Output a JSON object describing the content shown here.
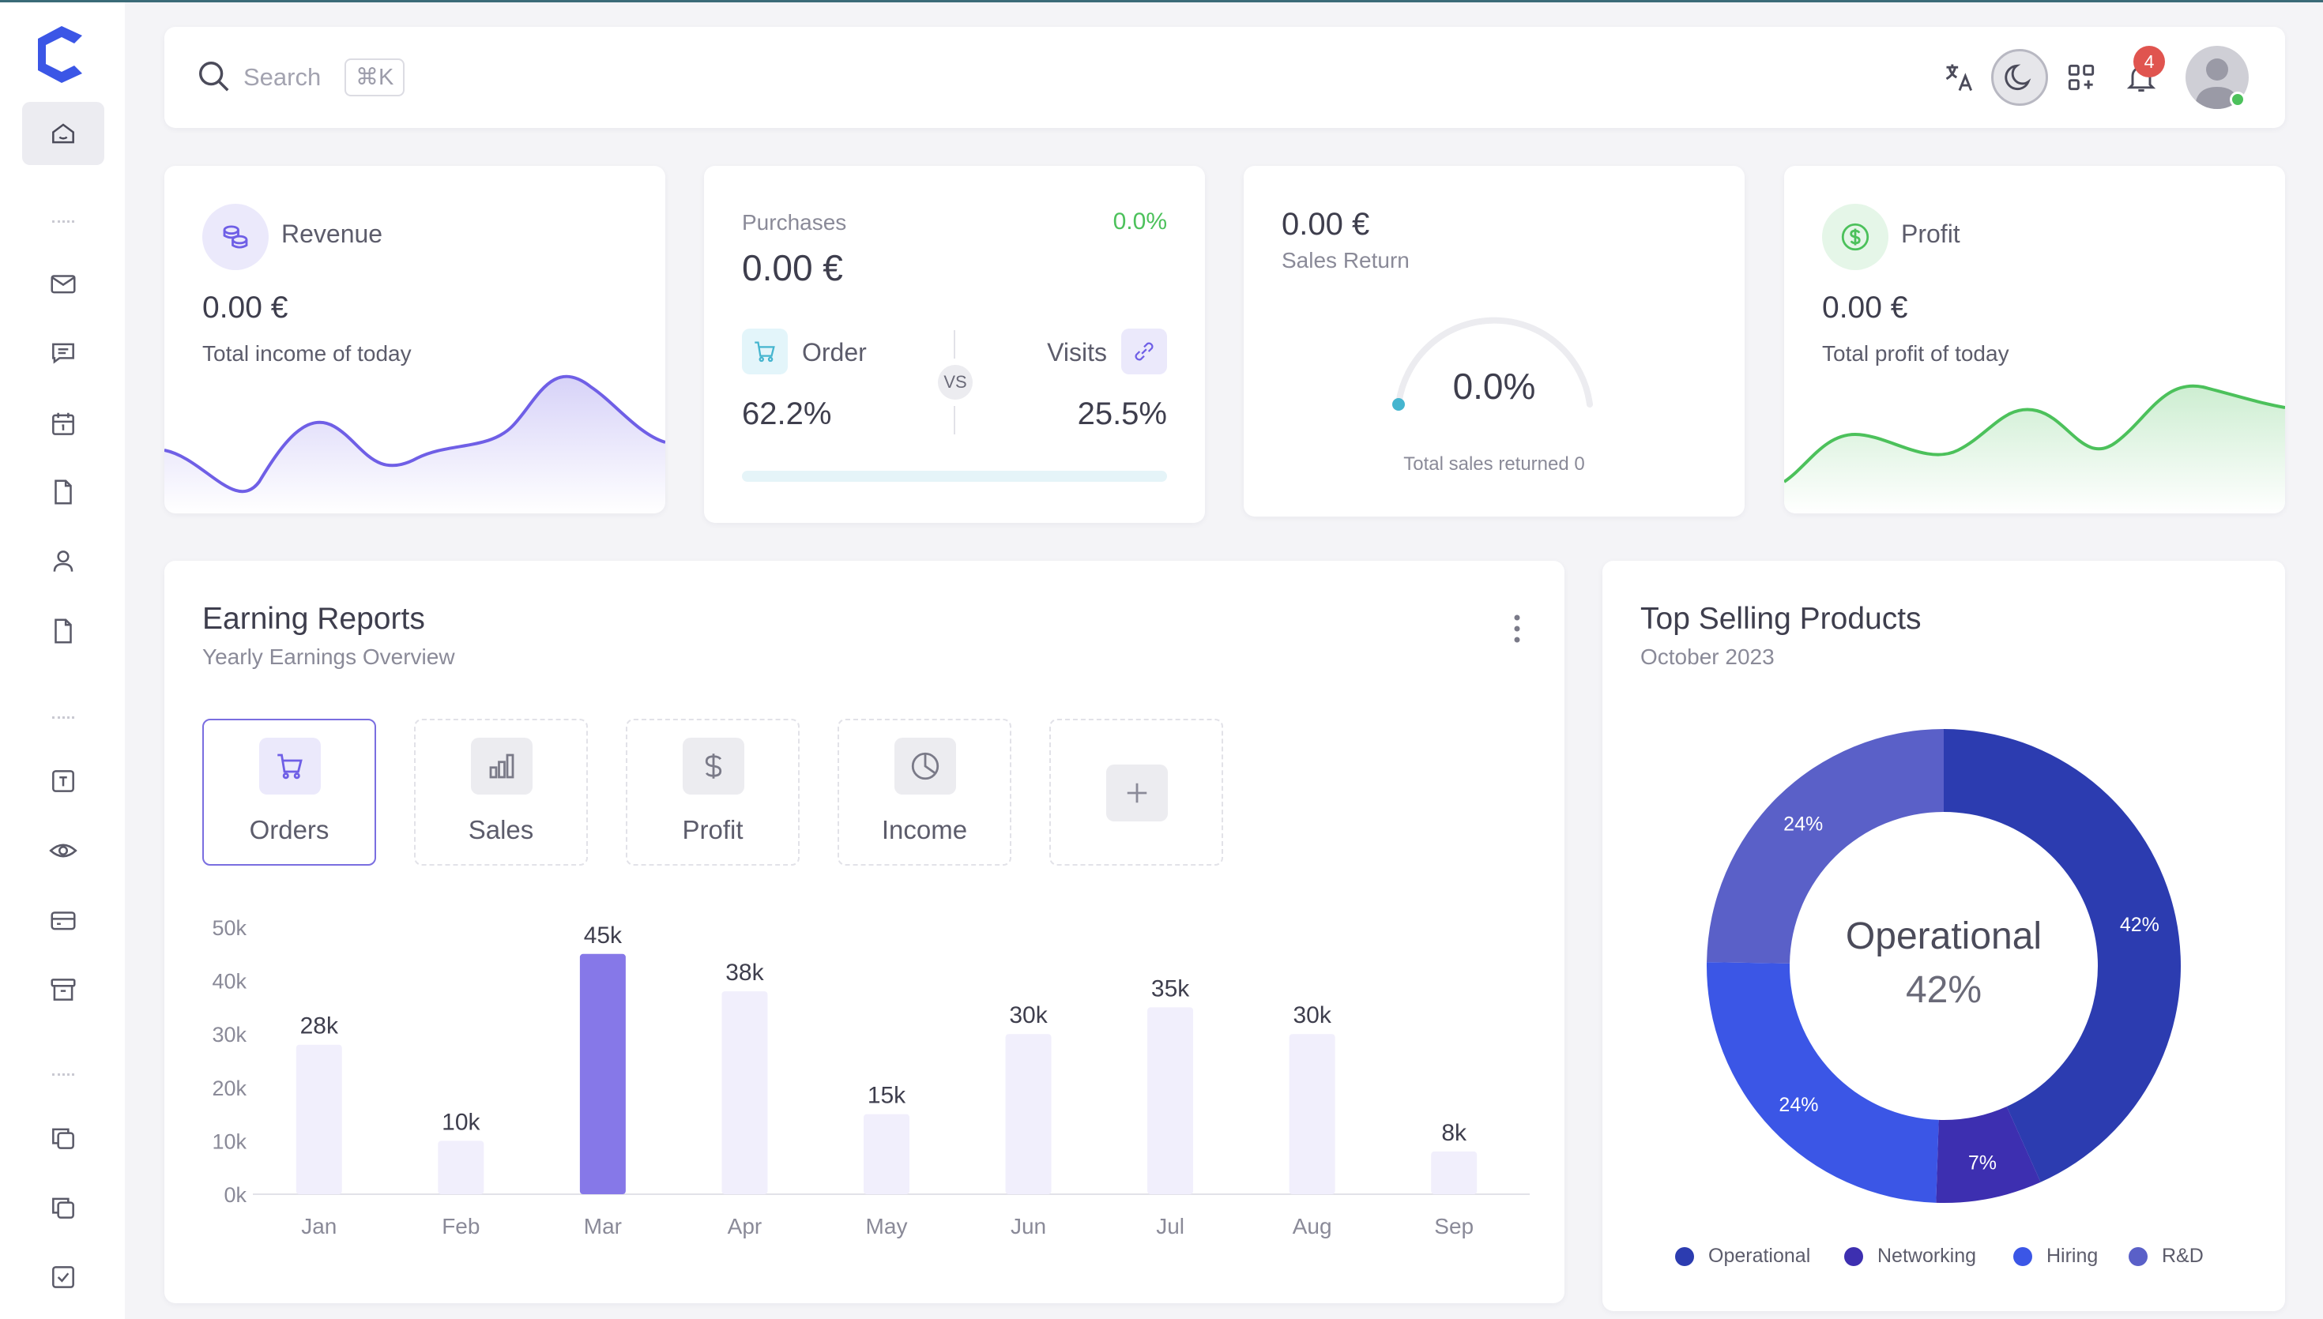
{
  "header": {
    "search_placeholder": "Search",
    "search_shortcut": "⌘K",
    "notification_count": "4",
    "icons": [
      "translate-icon",
      "moon-icon",
      "grid-add-icon",
      "bell-icon",
      "avatar"
    ]
  },
  "sidebar": {
    "items": [
      "home",
      "mail",
      "chat",
      "calendar",
      "file",
      "user",
      "file",
      "text",
      "eye",
      "card",
      "archive",
      "copy",
      "copy",
      "checkbox"
    ],
    "active": "home"
  },
  "revenue": {
    "title": "Revenue",
    "value": "0.00 €",
    "caption": "Total income of today",
    "color": "#6f5fe6"
  },
  "purchases": {
    "title": "Purchases",
    "change": "0.0%",
    "value": "0.00 €",
    "order_label": "Order",
    "order_value": "62.2%",
    "vs_label": "VS",
    "visits_label": "Visits",
    "visits_value": "25.5%",
    "progress": 0.0
  },
  "sales_return": {
    "value": "0.00 €",
    "label": "Sales Return",
    "gauge_value": "0.0%",
    "caption": "Total sales returned 0"
  },
  "profit": {
    "title": "Profit",
    "value": "0.00 €",
    "caption": "Total profit of today",
    "color": "#4cc15b"
  },
  "earning": {
    "title": "Earning Reports",
    "subtitle": "Yearly Earnings Overview",
    "tabs": [
      {
        "label": "Orders",
        "icon": "cart-icon",
        "active": true
      },
      {
        "label": "Sales",
        "icon": "bar-chart-icon",
        "active": false
      },
      {
        "label": "Profit",
        "icon": "dollar-icon",
        "active": false
      },
      {
        "label": "Income",
        "icon": "pie-chart-icon",
        "active": false
      }
    ]
  },
  "top_selling": {
    "title": "Top Selling Products",
    "subtitle": "October 2023",
    "center_label": "Operational",
    "center_value": "42%",
    "legend": [
      "Operational",
      "Networking",
      "Hiring",
      "R&D"
    ]
  },
  "chart_data": [
    {
      "type": "bar",
      "categories": [
        "Jan",
        "Feb",
        "Mar",
        "Apr",
        "May",
        "Jun",
        "Jul",
        "Aug",
        "Sep"
      ],
      "values": [
        28,
        10,
        45,
        38,
        15,
        30,
        35,
        30,
        8
      ],
      "value_labels": [
        "28k",
        "10k",
        "45k",
        "38k",
        "15k",
        "30k",
        "35k",
        "30k",
        "8k"
      ],
      "highlight_index": 2,
      "yticks": [
        "0k",
        "10k",
        "20k",
        "30k",
        "40k",
        "50k"
      ],
      "ylim": [
        0,
        50
      ],
      "colors": {
        "bar": "#f1effc",
        "highlight": "#8678e8"
      }
    },
    {
      "type": "pie",
      "labels": [
        "Operational",
        "Networking",
        "Hiring",
        "R&D"
      ],
      "values": [
        42,
        7,
        24,
        24
      ],
      "value_labels": [
        "42%",
        "7%",
        "24%",
        "24%"
      ],
      "colors": [
        "#2c3cb0",
        "#3d2fb0",
        "#3b56e6",
        "#5a60c8"
      ]
    }
  ]
}
